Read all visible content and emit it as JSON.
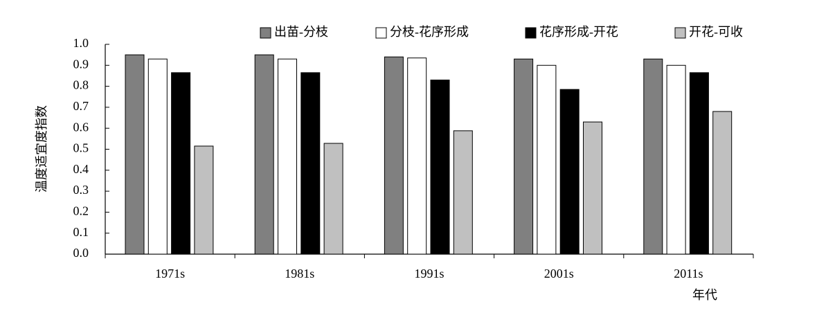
{
  "chart_data": {
    "type": "bar",
    "y_label": "温度适宜度指数",
    "x_label": "年代",
    "categories": [
      "1971s",
      "1981s",
      "1991s",
      "2001s",
      "2011s"
    ],
    "series": [
      {
        "name": "出苗-分枝",
        "color": "#808080",
        "values": [
          0.95,
          0.95,
          0.94,
          0.93,
          0.93
        ]
      },
      {
        "name": "分枝-花序形成",
        "color": "#ffffff",
        "values": [
          0.93,
          0.93,
          0.935,
          0.9,
          0.9
        ]
      },
      {
        "name": "花序形成-开花",
        "color": "#000000",
        "values": [
          0.865,
          0.865,
          0.83,
          0.785,
          0.865
        ]
      },
      {
        "name": "开花-可收",
        "color": "#c0c0c0",
        "values": [
          0.515,
          0.528,
          0.588,
          0.63,
          0.68
        ]
      }
    ],
    "ylim": [
      0,
      1
    ],
    "yticks": [
      {
        "value": 0,
        "label": "0.0"
      },
      0.1,
      0.2,
      0.3,
      0.4,
      0.5,
      0.6,
      0.7,
      0.8,
      0.9,
      {
        "value": 1,
        "label": "1.0"
      }
    ],
    "grid": false,
    "legend": "top"
  }
}
